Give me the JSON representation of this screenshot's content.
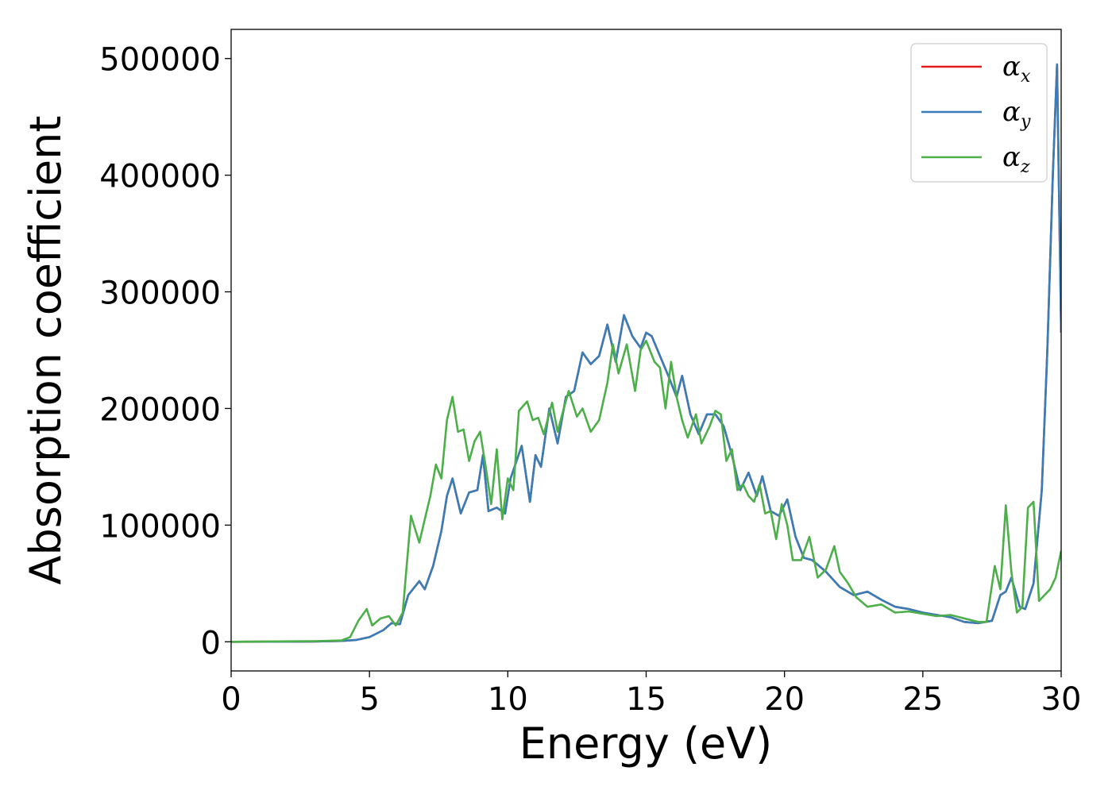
{
  "chart_data": {
    "type": "line",
    "title": "",
    "xlabel": "Energy (eV)",
    "ylabel": "Absorption coefficient",
    "xlim": [
      0,
      30
    ],
    "ylim": [
      -25000,
      525000
    ],
    "xticks": [
      0,
      5,
      10,
      15,
      20,
      25,
      30
    ],
    "xtick_labels": [
      "0",
      "5",
      "10",
      "15",
      "20",
      "25",
      "30"
    ],
    "yticks": [
      0,
      100000,
      200000,
      300000,
      400000,
      500000
    ],
    "ytick_labels": [
      "0",
      "100000",
      "200000",
      "300000",
      "400000",
      "500000"
    ],
    "grid": false,
    "legend_position": "top-right",
    "series": [
      {
        "name": "α_x",
        "base": "α",
        "sub": "x",
        "color": "#e41a1c",
        "x": [
          0,
          3,
          4,
          4.5,
          5,
          5.5,
          5.8,
          6.1,
          6.4,
          6.8,
          7.0,
          7.3,
          7.6,
          7.8,
          8.0,
          8.3,
          8.6,
          8.9,
          9.1,
          9.3,
          9.6,
          9.9,
          10.1,
          10.5,
          10.8,
          11.0,
          11.2,
          11.5,
          11.8,
          12.1,
          12.4,
          12.7,
          13.0,
          13.3,
          13.6,
          13.9,
          14.2,
          14.5,
          14.8,
          15.0,
          15.2,
          15.5,
          15.8,
          16.1,
          16.3,
          16.6,
          16.9,
          17.2,
          17.5,
          17.8,
          18.1,
          18.4,
          18.7,
          19.0,
          19.2,
          19.5,
          19.8,
          20.1,
          20.4,
          20.7,
          21.0,
          21.5,
          22.0,
          22.5,
          23.0,
          23.5,
          24.0,
          24.5,
          25.0,
          25.5,
          26.0,
          26.5,
          27.0,
          27.5,
          27.8,
          28.0,
          28.2,
          28.5,
          28.7,
          29.0,
          29.3,
          29.5,
          29.7,
          29.85,
          30.0
        ],
        "values": [
          0,
          200,
          700,
          1500,
          4000,
          10000,
          16000,
          15000,
          40000,
          52000,
          45000,
          65000,
          95000,
          125000,
          140000,
          110000,
          128000,
          130000,
          160000,
          112000,
          115000,
          110000,
          140000,
          168000,
          120000,
          160000,
          150000,
          200000,
          170000,
          210000,
          215000,
          248000,
          238000,
          245000,
          272000,
          240000,
          280000,
          262000,
          252000,
          265000,
          262000,
          245000,
          228000,
          210000,
          228000,
          195000,
          178000,
          195000,
          195000,
          185000,
          160000,
          130000,
          145000,
          125000,
          142000,
          112000,
          108000,
          122000,
          90000,
          72000,
          70000,
          60000,
          47000,
          40000,
          43000,
          36000,
          30000,
          28000,
          25000,
          23000,
          21000,
          17000,
          16000,
          18000,
          40000,
          43000,
          55000,
          30000,
          28000,
          50000,
          130000,
          250000,
          400000,
          495000,
          265000
        ]
      },
      {
        "name": "α_y",
        "base": "α",
        "sub": "y",
        "color": "#377eb8",
        "x": [
          0,
          3,
          4,
          4.5,
          5,
          5.5,
          5.8,
          6.1,
          6.4,
          6.8,
          7.0,
          7.3,
          7.6,
          7.8,
          8.0,
          8.3,
          8.6,
          8.9,
          9.1,
          9.3,
          9.6,
          9.9,
          10.1,
          10.5,
          10.8,
          11.0,
          11.2,
          11.5,
          11.8,
          12.1,
          12.4,
          12.7,
          13.0,
          13.3,
          13.6,
          13.9,
          14.2,
          14.5,
          14.8,
          15.0,
          15.2,
          15.5,
          15.8,
          16.1,
          16.3,
          16.6,
          16.9,
          17.2,
          17.5,
          17.8,
          18.1,
          18.4,
          18.7,
          19.0,
          19.2,
          19.5,
          19.8,
          20.1,
          20.4,
          20.7,
          21.0,
          21.5,
          22.0,
          22.5,
          23.0,
          23.5,
          24.0,
          24.5,
          25.0,
          25.5,
          26.0,
          26.5,
          27.0,
          27.5,
          27.8,
          28.0,
          28.2,
          28.5,
          28.7,
          29.0,
          29.3,
          29.5,
          29.7,
          29.85,
          30.0
        ],
        "values": [
          0,
          200,
          700,
          1500,
          4000,
          10000,
          16000,
          15000,
          40000,
          52000,
          45000,
          65000,
          95000,
          125000,
          140000,
          110000,
          128000,
          130000,
          160000,
          112000,
          115000,
          110000,
          140000,
          168000,
          120000,
          160000,
          150000,
          200000,
          170000,
          210000,
          215000,
          248000,
          238000,
          245000,
          272000,
          240000,
          280000,
          262000,
          252000,
          265000,
          262000,
          245000,
          228000,
          210000,
          228000,
          195000,
          178000,
          195000,
          195000,
          185000,
          160000,
          130000,
          145000,
          125000,
          142000,
          112000,
          108000,
          122000,
          90000,
          72000,
          70000,
          60000,
          47000,
          40000,
          43000,
          36000,
          30000,
          28000,
          25000,
          23000,
          21000,
          17000,
          16000,
          18000,
          40000,
          43000,
          55000,
          30000,
          28000,
          50000,
          130000,
          250000,
          400000,
          495000,
          265000
        ]
      },
      {
        "name": "α_z",
        "base": "α",
        "sub": "z",
        "color": "#4daf4a",
        "x": [
          0,
          3,
          4,
          4.3,
          4.6,
          4.9,
          5.1,
          5.4,
          5.7,
          5.95,
          6.2,
          6.5,
          6.8,
          7.0,
          7.2,
          7.4,
          7.6,
          7.8,
          8.0,
          8.2,
          8.4,
          8.6,
          8.8,
          9.0,
          9.2,
          9.4,
          9.6,
          9.8,
          10.0,
          10.2,
          10.4,
          10.7,
          10.9,
          11.1,
          11.3,
          11.6,
          11.8,
          12.0,
          12.2,
          12.5,
          12.7,
          13.0,
          13.3,
          13.6,
          13.8,
          14.0,
          14.3,
          14.6,
          14.8,
          15.0,
          15.3,
          15.5,
          15.7,
          15.9,
          16.1,
          16.3,
          16.5,
          16.8,
          17.0,
          17.3,
          17.5,
          17.7,
          17.9,
          18.1,
          18.3,
          18.5,
          18.7,
          18.9,
          19.1,
          19.3,
          19.5,
          19.7,
          19.9,
          20.1,
          20.3,
          20.6,
          20.9,
          21.2,
          21.5,
          21.8,
          22.0,
          22.3,
          22.6,
          23.0,
          23.5,
          24.0,
          24.5,
          25.0,
          25.5,
          26.0,
          26.5,
          27.0,
          27.3,
          27.6,
          27.8,
          28.0,
          28.2,
          28.4,
          28.6,
          28.8,
          29.0,
          29.2,
          29.4,
          29.6,
          29.8,
          30.0
        ],
        "values": [
          0,
          500,
          1200,
          4000,
          18000,
          28000,
          14000,
          20000,
          22000,
          14000,
          25000,
          108000,
          85000,
          105000,
          125000,
          152000,
          140000,
          190000,
          210000,
          180000,
          182000,
          155000,
          172000,
          180000,
          150000,
          118000,
          165000,
          105000,
          140000,
          130000,
          198000,
          206000,
          190000,
          192000,
          178000,
          205000,
          180000,
          198000,
          215000,
          193000,
          200000,
          180000,
          190000,
          222000,
          255000,
          230000,
          255000,
          215000,
          250000,
          258000,
          240000,
          235000,
          200000,
          240000,
          210000,
          190000,
          175000,
          195000,
          170000,
          185000,
          198000,
          195000,
          155000,
          165000,
          130000,
          135000,
          125000,
          120000,
          135000,
          110000,
          112000,
          88000,
          118000,
          100000,
          70000,
          70000,
          90000,
          55000,
          62000,
          82000,
          60000,
          50000,
          38000,
          30000,
          32000,
          25000,
          26000,
          24000,
          22000,
          23000,
          20000,
          17000,
          17000,
          65000,
          45000,
          117000,
          60000,
          25000,
          30000,
          115000,
          120000,
          35000,
          40000,
          45000,
          55000,
          78000
        ]
      }
    ]
  }
}
